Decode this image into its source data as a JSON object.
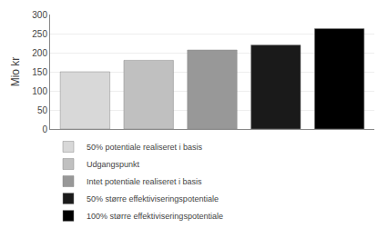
{
  "chart_data": {
    "type": "bar",
    "categories": [
      null,
      null,
      null,
      null,
      null
    ],
    "series": [
      {
        "name": "50% potentiale realiseret i basis",
        "color": "#d8d8d8",
        "values": [
          150,
          null,
          null,
          null,
          null
        ]
      },
      {
        "name": "Udgangspunkt",
        "color": "#c0c0c0",
        "values": [
          null,
          180,
          null,
          null,
          null
        ]
      },
      {
        "name": "Intet potentiale realiseret i basis",
        "color": "#989898",
        "values": [
          null,
          null,
          207,
          null,
          null
        ]
      },
      {
        "name": "50% større effektiviseringspotentiale",
        "color": "#1a1a1a",
        "values": [
          null,
          null,
          null,
          220,
          null
        ]
      },
      {
        "name": "100% større effektiviseringspotentiale",
        "color": "#000000",
        "values": [
          null,
          null,
          null,
          null,
          263
        ]
      }
    ],
    "ylabel": "Mio kr",
    "ylim": [
      0,
      300
    ],
    "yticks": [
      0,
      50,
      100,
      150,
      200,
      250,
      300
    ],
    "grid": true,
    "tick_labels": "y"
  }
}
